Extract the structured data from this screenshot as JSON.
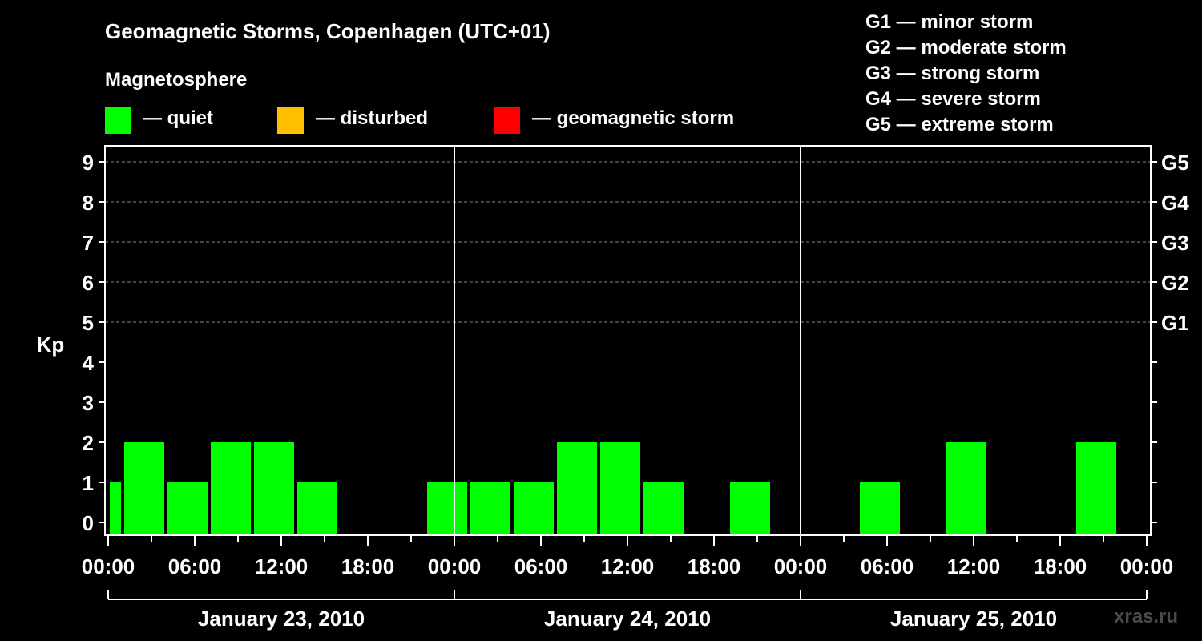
{
  "title": "Geomagnetic Storms, Copenhagen (UTC+01)",
  "legend": {
    "title": "Magnetosphere",
    "items": [
      {
        "label": "— quiet",
        "color": "#00ff00"
      },
      {
        "label": "— disturbed",
        "color": "#ffbf00"
      },
      {
        "label": "— geomagnetic storm",
        "color": "#ff0000"
      }
    ]
  },
  "storm_levels": [
    "G1 — minor storm",
    "G2 — moderate storm",
    "G3 — strong storm",
    "G4 — severe storm",
    "G5 — extreme storm"
  ],
  "watermark": "xras.ru",
  "chart_data": {
    "type": "bar",
    "ylabel": "Kp",
    "ylim": [
      0,
      9
    ],
    "yticks": [
      "0",
      "1",
      "2",
      "3",
      "4",
      "5",
      "6",
      "7",
      "8",
      "9"
    ],
    "right_axis_ticks": [
      {
        "label": "G1",
        "kp": 5
      },
      {
        "label": "G2",
        "kp": 6
      },
      {
        "label": "G3",
        "kp": 7
      },
      {
        "label": "G4",
        "kp": 8
      },
      {
        "label": "G5",
        "kp": 9
      }
    ],
    "x_tick_labels": [
      "00:00",
      "06:00",
      "12:00",
      "18:00",
      "00:00",
      "06:00",
      "12:00",
      "18:00",
      "00:00",
      "06:00",
      "12:00",
      "18:00",
      "00:00"
    ],
    "days": [
      "January 23, 2010",
      "January 24, 2010",
      "January 25, 2010"
    ],
    "bar_color": "#00ff00",
    "bars": [
      {
        "start_hour": 0,
        "end_hour": 1,
        "kp": 1
      },
      {
        "start_hour": 1,
        "end_hour": 4,
        "kp": 2
      },
      {
        "start_hour": 4,
        "end_hour": 7,
        "kp": 1
      },
      {
        "start_hour": 7,
        "end_hour": 10,
        "kp": 2
      },
      {
        "start_hour": 10,
        "end_hour": 13,
        "kp": 2
      },
      {
        "start_hour": 13,
        "end_hour": 16,
        "kp": 1
      },
      {
        "start_hour": 16,
        "end_hour": 19,
        "kp": 0
      },
      {
        "start_hour": 19,
        "end_hour": 22,
        "kp": 0
      },
      {
        "start_hour": 22,
        "end_hour": 25,
        "kp": 1
      },
      {
        "start_hour": 25,
        "end_hour": 28,
        "kp": 1
      },
      {
        "start_hour": 28,
        "end_hour": 31,
        "kp": 1
      },
      {
        "start_hour": 31,
        "end_hour": 34,
        "kp": 2
      },
      {
        "start_hour": 34,
        "end_hour": 37,
        "kp": 2
      },
      {
        "start_hour": 37,
        "end_hour": 40,
        "kp": 1
      },
      {
        "start_hour": 40,
        "end_hour": 43,
        "kp": 0
      },
      {
        "start_hour": 43,
        "end_hour": 46,
        "kp": 1
      },
      {
        "start_hour": 46,
        "end_hour": 49,
        "kp": 0
      },
      {
        "start_hour": 49,
        "end_hour": 52,
        "kp": 0
      },
      {
        "start_hour": 52,
        "end_hour": 55,
        "kp": 1
      },
      {
        "start_hour": 55,
        "end_hour": 58,
        "kp": 0
      },
      {
        "start_hour": 58,
        "end_hour": 61,
        "kp": 2
      },
      {
        "start_hour": 61,
        "end_hour": 64,
        "kp": 0
      },
      {
        "start_hour": 64,
        "end_hour": 67,
        "kp": 0
      },
      {
        "start_hour": 67,
        "end_hour": 70,
        "kp": 2
      }
    ]
  }
}
